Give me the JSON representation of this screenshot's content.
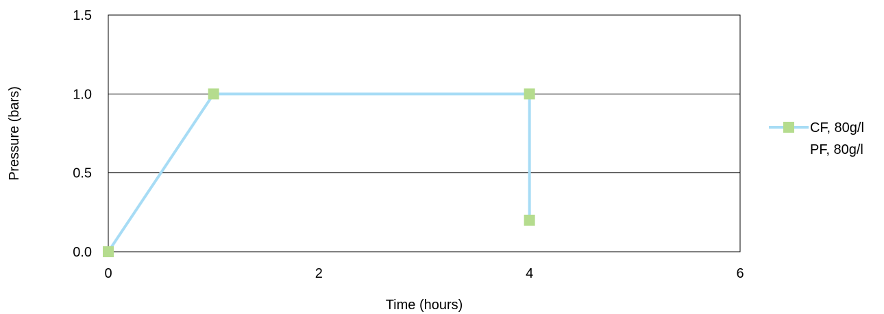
{
  "chart_data": {
    "type": "line",
    "title": "",
    "xlabel": "Time (hours)",
    "ylabel": "Pressure (bars)",
    "xlim": [
      0,
      6
    ],
    "ylim": [
      0,
      1.5
    ],
    "x_ticks": [
      "0",
      "2",
      "4",
      "6"
    ],
    "x_tick_values": [
      0,
      2,
      4,
      6
    ],
    "y_ticks": [
      "0.0",
      "0.5",
      "1.0",
      "1.5"
    ],
    "y_tick_values": [
      0,
      0.5,
      1.0,
      1.5
    ],
    "grid": "horizontal",
    "legend_position": "right",
    "legend_entries": [
      "CF, 80g/l",
      "PF, 80g/l"
    ],
    "series": [
      {
        "name": "CF, 80g/l",
        "line_color": "#a7dcf5",
        "marker_color": "#b5dc8e",
        "marker": "square",
        "points": [
          {
            "x": 0,
            "y": 0.0
          },
          {
            "x": 1,
            "y": 1.0
          },
          {
            "x": 4,
            "y": 1.0
          },
          {
            "x": 4,
            "y": 0.2
          }
        ]
      },
      {
        "name": "PF, 80g/l",
        "points": []
      }
    ]
  }
}
